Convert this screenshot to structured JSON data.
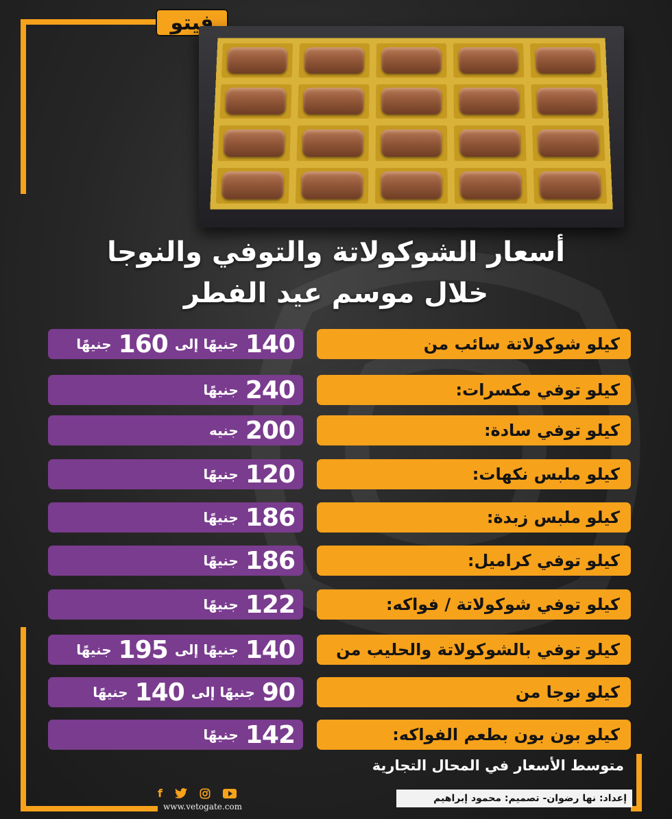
{
  "brand": {
    "logo_text": "فيتو",
    "website": "www.vetogate.com"
  },
  "colors": {
    "accent_orange": "#f7a21b",
    "price_purple": "#7a3c8e",
    "background": "#262626"
  },
  "title": {
    "line1": "أسعار الشوكولاتة والتوفي والنوجا",
    "line2": "خلال موسم عيد الفطر"
  },
  "rows": [
    {
      "label": "كيلو شوكولاتة سائب من",
      "from": "140",
      "from_unit": "جنيهًا إلى",
      "to": "160",
      "to_unit": "جنيهًا"
    },
    {
      "label": "كيلو توفي مكسرات:",
      "from": "240",
      "from_unit": "جنيهًا",
      "to": "",
      "to_unit": ""
    },
    {
      "label": "كيلو توفي سادة:",
      "from": "200",
      "from_unit": "جنيه",
      "to": "",
      "to_unit": ""
    },
    {
      "label": "كيلو ملبس نكهات:",
      "from": "120",
      "from_unit": "جنيهًا",
      "to": "",
      "to_unit": ""
    },
    {
      "label": "كيلو ملبس زبدة:",
      "from": "186",
      "from_unit": "جنيهًا",
      "to": "",
      "to_unit": ""
    },
    {
      "label": "كيلو توفي كراميل:",
      "from": "186",
      "from_unit": "جنيهًا",
      "to": "",
      "to_unit": ""
    },
    {
      "label": "كيلو توفي شوكولاتة /  فواكه:",
      "from": "122",
      "from_unit": "جنيهًا",
      "to": "",
      "to_unit": ""
    },
    {
      "label": "كيلو توفي بالشوكولاتة والحليب  من",
      "from": "140",
      "from_unit": "جنيهًا إلى",
      "to": "195",
      "to_unit": "جنيهًا"
    },
    {
      "label": "كيلو نوجا من",
      "from": "90",
      "from_unit": "جنيهًا إلى",
      "to": "140",
      "to_unit": "جنيهًا"
    },
    {
      "label": "كيلو بون بون بطعم الفواكه:",
      "from": "142",
      "from_unit": "جنيهًا",
      "to": "",
      "to_unit": ""
    }
  ],
  "footer": {
    "note": "متوسط الأسعار في المحال التجارية",
    "credits": "إعداد:  نها رضوان- تصميم: محمود إبراهيم"
  },
  "social": {
    "facebook": "f",
    "twitter": "twitter-icon",
    "instagram": "instagram-icon",
    "youtube": "youtube-icon"
  }
}
